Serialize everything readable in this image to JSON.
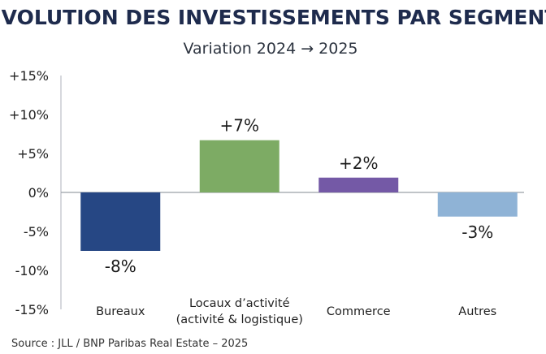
{
  "chart_data": {
    "type": "bar",
    "title": "ÉVOLUTION DES INVESTISSEMENTS PAR SEGMENT",
    "subtitle": "Variation 2024 → 2025",
    "xlabel": "",
    "ylabel": "",
    "ylim": [
      -15,
      15
    ],
    "yticks": [
      15,
      10,
      5,
      0,
      -5,
      -10,
      -15
    ],
    "ytick_labels": [
      "+15%",
      "+10%",
      "+5%",
      "0%",
      "-5%",
      "-10%",
      "-15%"
    ],
    "grid": false,
    "categories": [
      [
        "Bureaux"
      ],
      [
        "Locaux d’activité",
        "(activité & logistique)"
      ],
      [
        "Commerce"
      ],
      [
        "Autres"
      ]
    ],
    "values": [
      -7.5,
      6.7,
      1.9,
      -3.1
    ],
    "value_labels": [
      "-8%",
      "+7%",
      "+2%",
      "-3%"
    ],
    "colors": [
      "#264784",
      "#7dab64",
      "#7459a6",
      "#8fb3d6"
    ],
    "source": "Source : JLL / BNP Paribas Real Estate – 2025"
  }
}
